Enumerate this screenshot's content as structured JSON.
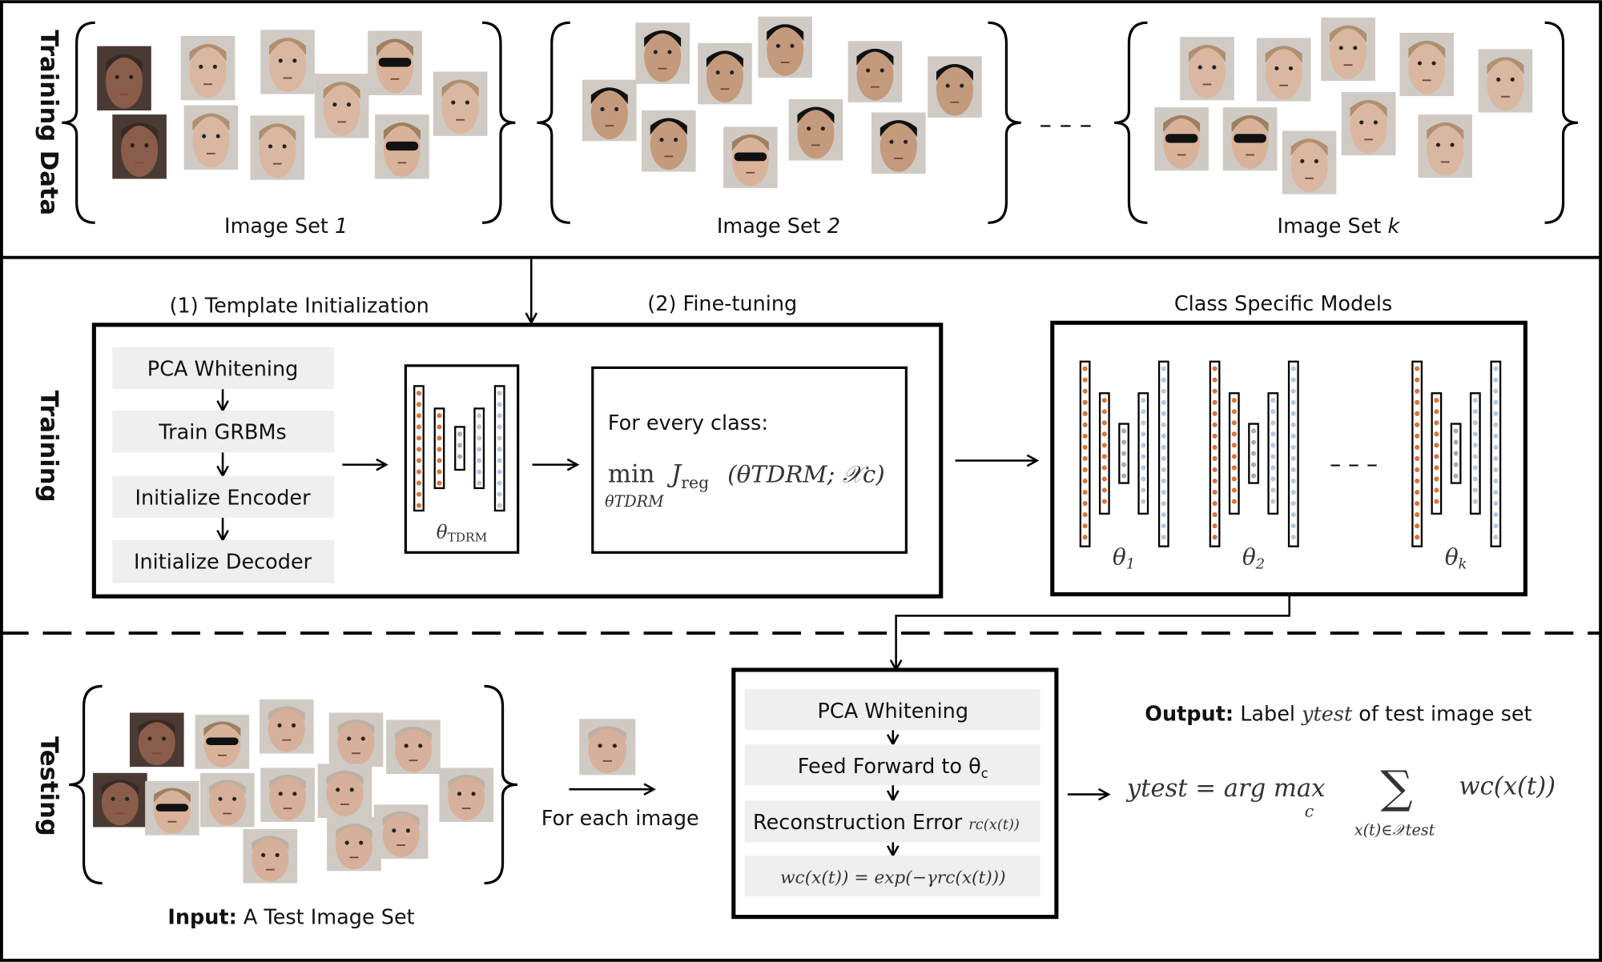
{
  "side_labels": {
    "training_data": "Training Data",
    "training": "Training",
    "testing": "Testing"
  },
  "training_data": {
    "sets": [
      {
        "label": "Image Set ",
        "index": "1"
      },
      {
        "label": "Image Set ",
        "index": "2"
      },
      {
        "label": "Image Set ",
        "index": "k"
      }
    ],
    "ellipsis": "– – –"
  },
  "training": {
    "stage1_title": "(1) Template Initialization",
    "stage2_title": "(2) Fine-tuning",
    "models_title": "Class Specific Models",
    "steps": [
      "PCA Whitening",
      "Train GRBMs",
      "Initialize Encoder",
      "Initialize Decoder"
    ],
    "template_label": {
      "theta": "θ",
      "sub": "TDRM"
    },
    "finetune": {
      "heading": "For every class:",
      "min": "min",
      "min_sub": "θTDRM",
      "J": "J",
      "J_sub": "reg",
      "args": "(θTDRM; 𝒳c)"
    },
    "models": [
      {
        "theta": "θ",
        "sub": "1"
      },
      {
        "theta": "θ",
        "sub": "2"
      },
      {
        "theta": "θ",
        "sub": "k"
      }
    ],
    "models_ellipsis": "– – –",
    "node_colors": {
      "encoder": "#d9743a",
      "code": "#aaaaaa",
      "decoder": "#b8c6de"
    }
  },
  "testing": {
    "input_bold": "Input:",
    "input_text": " A Test Image Set",
    "for_each": "For each image",
    "steps": [
      "PCA Whitening",
      "Feed Forward to θ",
      "Reconstruction Error ",
      "wc(x(t)) = exp(−γrc(x(t)))"
    ],
    "feed_sub": "c",
    "recon_math": "rc(x(t))",
    "output_bold": "Output:",
    "output_text1": " Label ",
    "output_var": "ytest",
    "output_text2": " of test image set",
    "formula": {
      "lhs": "ytest = arg max",
      "under_max": "c",
      "sum": "∑",
      "under_sum": "x(t)∈𝒳test",
      "term": "wc(x(t))"
    }
  }
}
